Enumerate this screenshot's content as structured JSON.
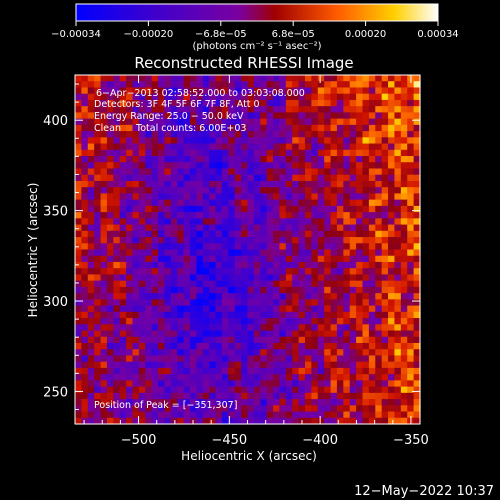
{
  "chart_data": {
    "type": "heatmap",
    "title": "Reconstructed RHESSI Image",
    "xlabel": "Heliocentric X (arcsec)",
    "ylabel": "Heliocentric Y (arcsec)",
    "xlim": [
      -535,
      -345
    ],
    "ylim": [
      232,
      425
    ],
    "x_ticks": [
      -500,
      -450,
      -400,
      -350
    ],
    "x_tick_labels": [
      "−500",
      "−450",
      "−400",
      "−350"
    ],
    "y_ticks": [
      250,
      300,
      350,
      400
    ],
    "y_tick_labels": [
      "250",
      "300",
      "350",
      "400"
    ],
    "colorbar": {
      "min": -0.00034,
      "max": 0.00034,
      "tick_labels": [
        "−0.00034",
        "−0.00020",
        "−6.8e−05",
        "6.8e−05",
        "0.00020",
        "0.00034"
      ],
      "units": "(photons cm⁻² s⁻¹ asec⁻²)",
      "colormap": [
        "#0000ff",
        "#3f00cc",
        "#7a00a0",
        "#a00000",
        "#ff6a00",
        "#ffdd00",
        "#ffffff"
      ]
    },
    "annotations": {
      "time": "6−Apr−2013 02:58:52.000 to 03:03:08.000",
      "detectors": "Detectors: 3F 4F 5F 6F 7F 8F, Att 0",
      "energy": "Energy Range: 25.0 − 50.0 keV",
      "method": "Clean     Total counts: 6.00E+03",
      "peak": "Position of Peak = [−351,307]"
    },
    "peak_position": [
      -351,
      307
    ],
    "grid": false
  },
  "footer": {
    "timestamp": "12−May−2022 10:37"
  }
}
